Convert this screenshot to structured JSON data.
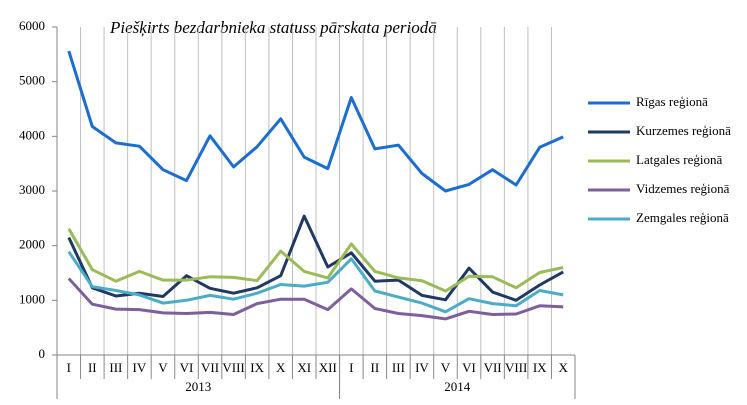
{
  "chart_data": {
    "type": "line",
    "title": "Piešķirts bezdarbnieka statuss pārskata periodā",
    "categories": [
      "I",
      "II",
      "III",
      "IV",
      "V",
      "VI",
      "VII",
      "VIII",
      "IX",
      "X",
      "XI",
      "XII",
      "I",
      "II",
      "III",
      "IV",
      "V",
      "VI",
      "VII",
      "VIII",
      "IX",
      "X"
    ],
    "category_groups": [
      {
        "label": "2013",
        "span": 12
      },
      {
        "label": "2014",
        "span": 10
      }
    ],
    "ylim": [
      0,
      6000
    ],
    "yticks": [
      0,
      1000,
      2000,
      3000,
      4000,
      5000,
      6000
    ],
    "legend": "right",
    "series": [
      {
        "name": "Rīgas reģionā",
        "color": "#1c6dd0",
        "values": [
          5560,
          4180,
          3880,
          3820,
          3390,
          3190,
          4010,
          3440,
          3810,
          4320,
          3620,
          3410,
          4710,
          3770,
          3840,
          3320,
          3000,
          3120,
          3390,
          3110,
          3800,
          3990
        ]
      },
      {
        "name": "Kurzemes reģionā",
        "color": "#1f3864",
        "values": [
          2150,
          1230,
          1080,
          1130,
          1070,
          1450,
          1220,
          1130,
          1230,
          1450,
          2540,
          1610,
          1870,
          1350,
          1370,
          1090,
          1010,
          1590,
          1150,
          1000,
          1280,
          1520
        ]
      },
      {
        "name": "Latgales reģionā",
        "color": "#9bbb59",
        "values": [
          2310,
          1560,
          1350,
          1530,
          1370,
          1370,
          1430,
          1420,
          1360,
          1900,
          1530,
          1410,
          2030,
          1530,
          1410,
          1360,
          1170,
          1440,
          1430,
          1230,
          1510,
          1600
        ]
      },
      {
        "name": "Vidzemes reģionā",
        "color": "#7d5f9c",
        "values": [
          1400,
          930,
          840,
          830,
          770,
          760,
          780,
          740,
          940,
          1020,
          1020,
          830,
          1210,
          850,
          760,
          720,
          660,
          800,
          740,
          750,
          900,
          880
        ]
      },
      {
        "name": "Zemgales reģionā",
        "color": "#4bacc6",
        "values": [
          1890,
          1250,
          1180,
          1100,
          950,
          1000,
          1090,
          1020,
          1130,
          1290,
          1260,
          1330,
          1760,
          1170,
          1060,
          950,
          790,
          1030,
          940,
          900,
          1180,
          1100
        ]
      }
    ]
  }
}
